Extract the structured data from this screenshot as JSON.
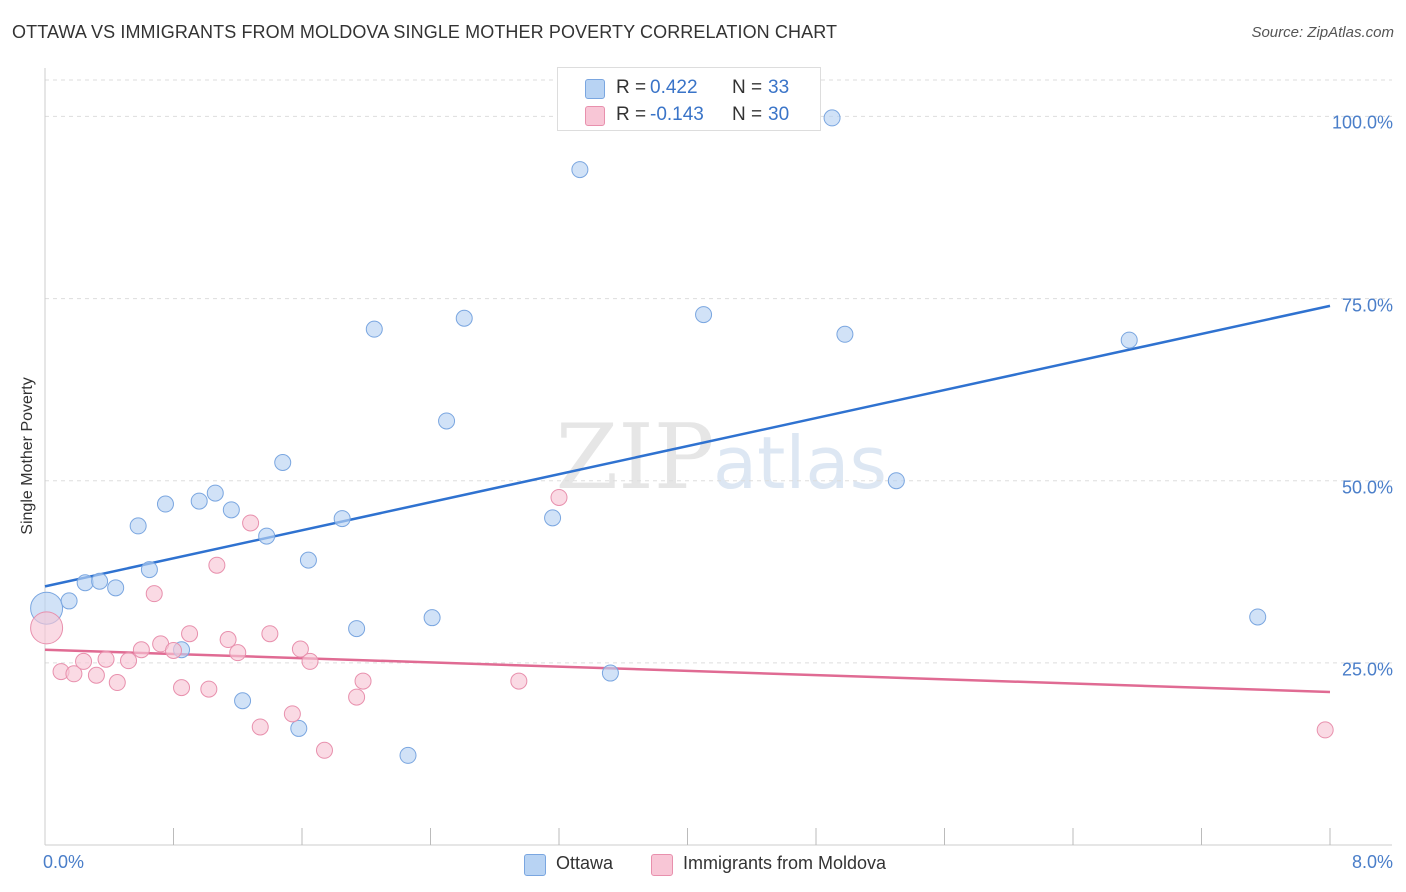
{
  "title": "OTTAWA VS IMMIGRANTS FROM MOLDOVA SINGLE MOTHER POVERTY CORRELATION CHART",
  "source": "Source: ZipAtlas.com",
  "watermark": {
    "zip": "ZIP",
    "atlas": "atlas"
  },
  "colors": {
    "ottawa_fill": "#b8d3f3",
    "ottawa_edge": "#7aa6e0",
    "ottawa_line": "#2f72d0",
    "moldova_fill": "#f8c6d6",
    "moldova_edge": "#e890ad",
    "moldova_line": "#e06b93",
    "tick_text": "#4a7ec9",
    "grid": "#dddddd"
  },
  "legend": {
    "r_label": "R =",
    "n_label": "N =",
    "rows": [
      {
        "r": "0.422",
        "n": "33"
      },
      {
        "r": "-0.143",
        "n": "30"
      }
    ],
    "bottom": [
      "Ottawa",
      "Immigrants from Moldova"
    ]
  },
  "chart_data": {
    "type": "scatter",
    "title": "OTTAWA VS IMMIGRANTS FROM MOLDOVA SINGLE MOTHER POVERTY CORRELATION CHART",
    "xlabel": "",
    "ylabel": "Single Mother Poverty",
    "xlim": [
      0,
      8
    ],
    "ylim": [
      0,
      105
    ],
    "x_tick_labels": [
      "0.0%",
      "8.0%"
    ],
    "y_ticks": [
      25,
      50,
      75,
      100
    ],
    "y_tick_labels": [
      "25.0%",
      "50.0%",
      "75.0%",
      "100.0%"
    ],
    "grid": true,
    "legend_position": "top-center",
    "series": [
      {
        "name": "Ottawa",
        "r": 0.422,
        "n": 33,
        "trend": {
          "x": [
            0,
            8
          ],
          "y": [
            35.5,
            74.0
          ]
        },
        "points": [
          {
            "x": 0.01,
            "y": 32.5,
            "big": true
          },
          {
            "x": 0.15,
            "y": 33.5
          },
          {
            "x": 0.25,
            "y": 36.0
          },
          {
            "x": 0.34,
            "y": 36.2
          },
          {
            "x": 0.44,
            "y": 35.3
          },
          {
            "x": 0.58,
            "y": 43.8
          },
          {
            "x": 0.65,
            "y": 37.8
          },
          {
            "x": 0.75,
            "y": 46.8
          },
          {
            "x": 0.85,
            "y": 26.8
          },
          {
            "x": 0.96,
            "y": 47.2
          },
          {
            "x": 1.06,
            "y": 48.3
          },
          {
            "x": 1.16,
            "y": 46.0
          },
          {
            "x": 1.23,
            "y": 19.8
          },
          {
            "x": 1.38,
            "y": 42.4
          },
          {
            "x": 1.48,
            "y": 52.5
          },
          {
            "x": 1.58,
            "y": 16.0
          },
          {
            "x": 1.64,
            "y": 39.1
          },
          {
            "x": 1.85,
            "y": 44.8
          },
          {
            "x": 1.94,
            "y": 29.7
          },
          {
            "x": 2.05,
            "y": 70.8
          },
          {
            "x": 2.26,
            "y": 12.3
          },
          {
            "x": 2.41,
            "y": 31.2
          },
          {
            "x": 2.5,
            "y": 58.2
          },
          {
            "x": 2.61,
            "y": 72.3
          },
          {
            "x": 3.16,
            "y": 44.9
          },
          {
            "x": 3.33,
            "y": 92.7
          },
          {
            "x": 3.52,
            "y": 23.6
          },
          {
            "x": 4.1,
            "y": 72.8
          },
          {
            "x": 4.9,
            "y": 99.8
          },
          {
            "x": 4.98,
            "y": 70.1
          },
          {
            "x": 5.3,
            "y": 50.0
          },
          {
            "x": 6.75,
            "y": 69.3
          },
          {
            "x": 7.55,
            "y": 31.3
          }
        ]
      },
      {
        "name": "Immigrants from Moldova",
        "r": -0.143,
        "n": 30,
        "trend": {
          "x": [
            0,
            8
          ],
          "y": [
            26.8,
            21.0
          ]
        },
        "points": [
          {
            "x": 0.01,
            "y": 29.8,
            "big": true
          },
          {
            "x": 0.1,
            "y": 23.8
          },
          {
            "x": 0.18,
            "y": 23.5
          },
          {
            "x": 0.24,
            "y": 25.2
          },
          {
            "x": 0.32,
            "y": 23.3
          },
          {
            "x": 0.38,
            "y": 25.5
          },
          {
            "x": 0.45,
            "y": 22.3
          },
          {
            "x": 0.52,
            "y": 25.3
          },
          {
            "x": 0.6,
            "y": 26.8
          },
          {
            "x": 0.68,
            "y": 34.5
          },
          {
            "x": 0.72,
            "y": 27.6
          },
          {
            "x": 0.8,
            "y": 26.7
          },
          {
            "x": 0.85,
            "y": 21.6
          },
          {
            "x": 0.9,
            "y": 29.0
          },
          {
            "x": 1.02,
            "y": 21.4
          },
          {
            "x": 1.07,
            "y": 38.4
          },
          {
            "x": 1.14,
            "y": 28.2
          },
          {
            "x": 1.2,
            "y": 26.4
          },
          {
            "x": 1.28,
            "y": 44.2
          },
          {
            "x": 1.34,
            "y": 16.2
          },
          {
            "x": 1.4,
            "y": 29.0
          },
          {
            "x": 1.54,
            "y": 18.0
          },
          {
            "x": 1.59,
            "y": 26.9
          },
          {
            "x": 1.65,
            "y": 25.2
          },
          {
            "x": 1.74,
            "y": 13.0
          },
          {
            "x": 1.94,
            "y": 20.3
          },
          {
            "x": 1.98,
            "y": 22.5
          },
          {
            "x": 2.95,
            "y": 22.5
          },
          {
            "x": 3.2,
            "y": 47.7
          },
          {
            "x": 7.97,
            "y": 15.8
          }
        ]
      }
    ]
  }
}
